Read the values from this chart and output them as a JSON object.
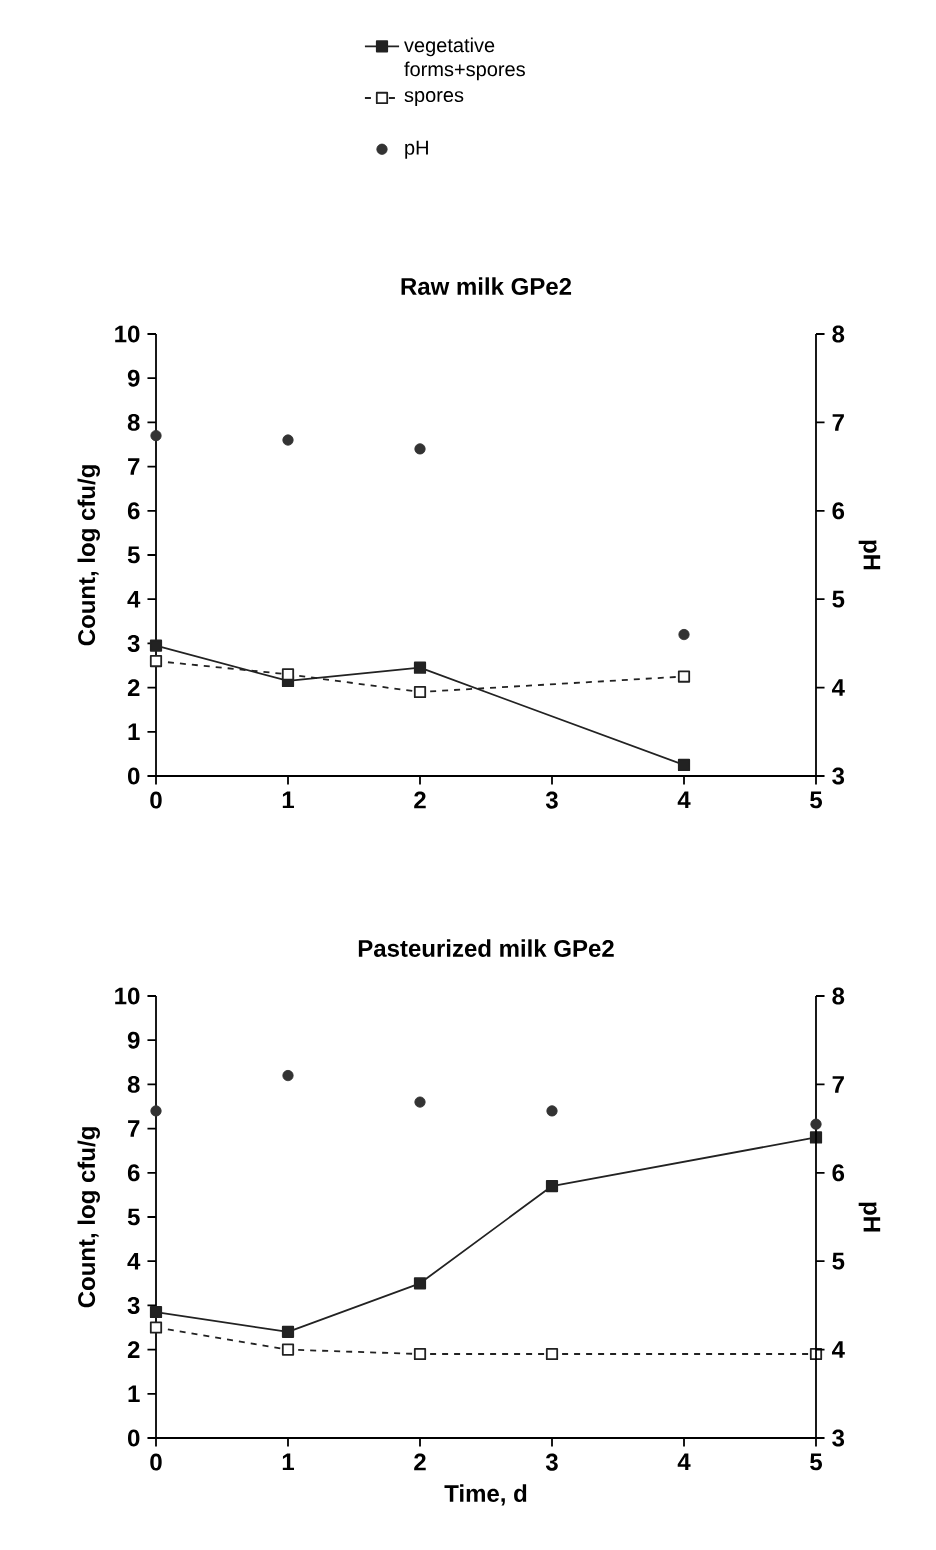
{
  "chart_data": [
    {
      "type": "line",
      "title": "Raw milk GPe2",
      "ylabel": "Count, log cfu/g",
      "y2label": "pH",
      "legend": "top",
      "xlim": [
        0,
        5
      ],
      "xticks": [
        0,
        1,
        2,
        3,
        4,
        5
      ],
      "ylim": [
        0,
        10
      ],
      "yticks": [
        0,
        1,
        2,
        3,
        4,
        5,
        6,
        7,
        8,
        9,
        10
      ],
      "y2lim": [
        3,
        8
      ],
      "y2ticks": [
        3,
        4,
        5,
        6,
        7,
        8
      ],
      "series": [
        {
          "name": "vegetative forms+spores",
          "color": "#222222",
          "x": [
            0,
            1,
            2,
            4
          ],
          "values": [
            2.95,
            2.15,
            2.45,
            0.25
          ],
          "marker": "square",
          "line_style": "solid"
        },
        {
          "name": "spores",
          "color": "#222222",
          "x": [
            0,
            1,
            2,
            4
          ],
          "values": [
            2.6,
            2.3,
            1.9,
            2.25
          ],
          "marker": "square",
          "line_style": "dashed"
        },
        {
          "name": "pH",
          "type": "scatter",
          "axis": "y2",
          "color": "#333333",
          "x": [
            0,
            1,
            2,
            4
          ],
          "values": [
            6.85,
            6.8,
            6.7,
            4.6
          ],
          "marker": "circle"
        }
      ]
    },
    {
      "type": "line",
      "title": "Pasteurized milk GPe2",
      "xlabel": "Time, d",
      "ylabel": "Count, log cfu/g",
      "y2label": "pH",
      "xlim": [
        0,
        5
      ],
      "xticks": [
        0,
        1,
        2,
        3,
        4,
        5
      ],
      "ylim": [
        0,
        10
      ],
      "yticks": [
        0,
        1,
        2,
        3,
        4,
        5,
        6,
        7,
        8,
        9,
        10
      ],
      "y2lim": [
        3,
        8
      ],
      "y2ticks": [
        3,
        4,
        5,
        6,
        7,
        8
      ],
      "series": [
        {
          "color": "#222222",
          "x": [
            0,
            1,
            2,
            3,
            5
          ],
          "values": [
            2.85,
            2.4,
            3.5,
            5.7,
            6.8
          ],
          "marker": "square",
          "line_style": "solid"
        },
        {
          "color": "#222222",
          "x": [
            0,
            1,
            2,
            3,
            5
          ],
          "values": [
            2.5,
            2.0,
            1.9,
            1.9,
            1.9
          ],
          "marker": "square",
          "line_style": "dashed"
        },
        {
          "type": "scatter",
          "axis": "y2",
          "color": "#333333",
          "x": [
            0,
            1,
            2,
            3,
            5
          ],
          "values": [
            6.7,
            7.1,
            6.8,
            6.7,
            6.55
          ],
          "marker": "circle"
        }
      ]
    }
  ]
}
